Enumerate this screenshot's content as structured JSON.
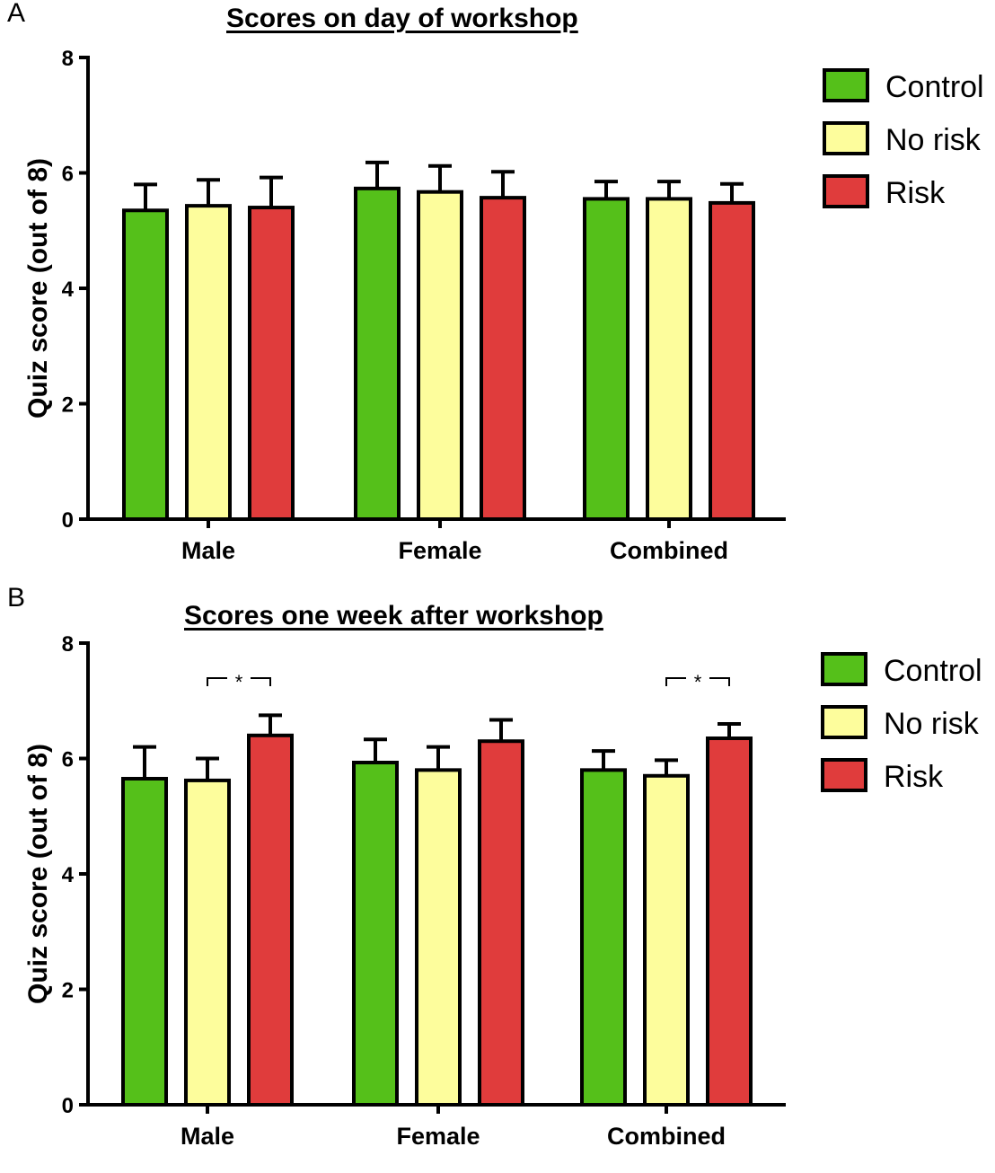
{
  "colors": {
    "Control": "#55c01a",
    "No risk": "#fdfd9c",
    "Risk": "#e03c3c",
    "outline": "#000000"
  },
  "chart_data": [
    {
      "panel": "A",
      "type": "bar",
      "title": "Scores on day of workshop",
      "xlabel": "",
      "ylabel": "Quiz score (out of 8)",
      "ylim": [
        0,
        8
      ],
      "yticks": [
        0,
        2,
        4,
        6,
        8
      ],
      "categories": [
        "Male",
        "Female",
        "Combined"
      ],
      "series": [
        {
          "name": "Control",
          "values": [
            5.35,
            5.73,
            5.55
          ],
          "errors": [
            0.45,
            0.45,
            0.3
          ]
        },
        {
          "name": "No risk",
          "values": [
            5.43,
            5.67,
            5.55
          ],
          "errors": [
            0.45,
            0.45,
            0.3
          ]
        },
        {
          "name": "Risk",
          "values": [
            5.4,
            5.57,
            5.48
          ],
          "errors": [
            0.52,
            0.45,
            0.33
          ]
        }
      ],
      "significance": [],
      "legend_position": "top-right",
      "grid": false
    },
    {
      "panel": "B",
      "type": "bar",
      "title": "Scores one week after workshop",
      "xlabel": "",
      "ylabel": "Quiz score (out of 8)",
      "ylim": [
        0,
        8
      ],
      "yticks": [
        0,
        2,
        4,
        6,
        8
      ],
      "categories": [
        "Male",
        "Female",
        "Combined"
      ],
      "series": [
        {
          "name": "Control",
          "values": [
            5.65,
            5.93,
            5.8
          ],
          "errors": [
            0.55,
            0.4,
            0.33
          ]
        },
        {
          "name": "No risk",
          "values": [
            5.62,
            5.8,
            5.7
          ],
          "errors": [
            0.38,
            0.4,
            0.27
          ]
        },
        {
          "name": "Risk",
          "values": [
            6.4,
            6.3,
            6.35
          ],
          "errors": [
            0.35,
            0.37,
            0.25
          ]
        }
      ],
      "significance": [
        {
          "category": "Male",
          "from": "No risk",
          "to": "Risk",
          "label": "*"
        },
        {
          "category": "Combined",
          "from": "No risk",
          "to": "Risk",
          "label": "*"
        }
      ],
      "legend_position": "top-right",
      "grid": false
    }
  ]
}
